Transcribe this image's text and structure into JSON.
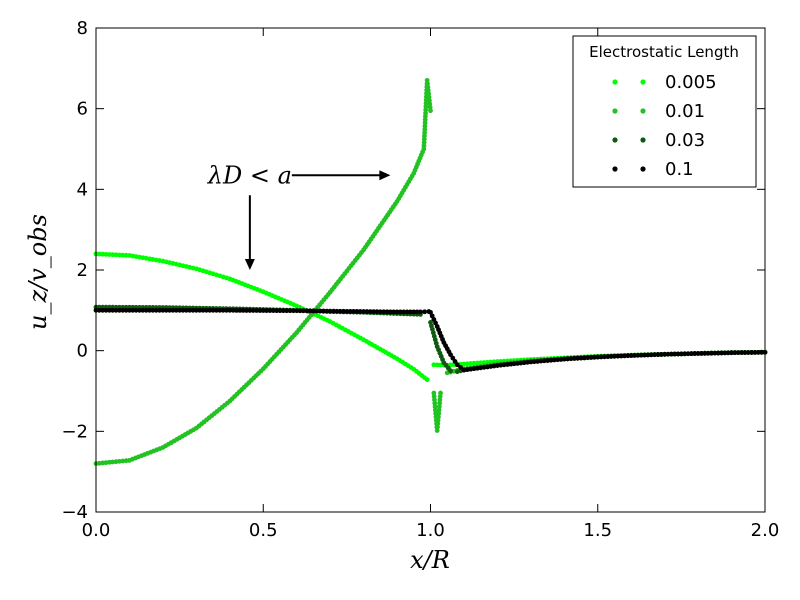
{
  "chart_data": {
    "type": "scatter",
    "title": "",
    "xlabel": "x/R",
    "ylabel": "u_z/v_obs",
    "xlim": [
      0.0,
      2.0
    ],
    "ylim": [
      -4,
      8
    ],
    "x_ticks": [
      "0.0",
      "0.5",
      "1.0",
      "1.5",
      "2.0"
    ],
    "x_tick_values": [
      0.0,
      0.5,
      1.0,
      1.5,
      2.0
    ],
    "y_ticks": [
      "−4",
      "−2",
      "0",
      "2",
      "4",
      "6",
      "8"
    ],
    "y_tick_values": [
      -4,
      -2,
      0,
      2,
      4,
      6,
      8
    ],
    "grid": false,
    "legend": {
      "title": "Electrostatic Length",
      "placement": "top-right",
      "entries": [
        "0.005",
        "0.01",
        "0.03",
        "0.1"
      ]
    },
    "annotation": {
      "text": "λD < a",
      "text_data_xy": [
        0.46,
        4.2
      ],
      "arrow_right_to": [
        0.88,
        4.2
      ],
      "arrow_down_to": [
        0.46,
        2.0
      ]
    },
    "series": [
      {
        "name": "0.005",
        "color": "#00ff00",
        "segments": [
          {
            "x": [
              0.0,
              0.1,
              0.2,
              0.3,
              0.4,
              0.5,
              0.6,
              0.7,
              0.8,
              0.9,
              0.95,
              0.99
            ],
            "y": [
              2.4,
              2.36,
              2.22,
              2.03,
              1.78,
              1.46,
              1.11,
              0.72,
              0.27,
              -0.2,
              -0.46,
              -0.72
            ]
          },
          {
            "x": [
              1.01,
              1.05,
              1.1,
              1.2,
              1.3,
              1.4,
              1.5,
              1.6,
              1.7,
              1.8,
              1.9,
              2.0
            ],
            "y": [
              -0.35,
              -0.36,
              -0.33,
              -0.27,
              -0.22,
              -0.18,
              -0.14,
              -0.11,
              -0.09,
              -0.07,
              -0.05,
              -0.04
            ]
          }
        ]
      },
      {
        "name": "0.01",
        "color": "#22c222",
        "segments": [
          {
            "x": [
              0.0,
              0.1,
              0.2,
              0.3,
              0.4,
              0.5,
              0.6,
              0.7,
              0.8,
              0.9,
              0.95,
              0.98,
              0.99,
              1.0
            ],
            "y": [
              -2.8,
              -2.72,
              -2.4,
              -1.92,
              -1.25,
              -0.45,
              0.45,
              1.45,
              2.5,
              3.7,
              4.4,
              5.0,
              6.7,
              5.95
            ]
          },
          {
            "x": [
              1.01,
              1.02,
              1.03
            ],
            "y": [
              -1.05,
              -1.98,
              -1.05
            ]
          },
          {
            "x": [
              1.05,
              1.1,
              1.2,
              1.3,
              1.4,
              1.5,
              1.6,
              1.7,
              1.8,
              1.9,
              2.0
            ],
            "y": [
              -0.55,
              -0.45,
              -0.33,
              -0.25,
              -0.2,
              -0.15,
              -0.12,
              -0.09,
              -0.07,
              -0.05,
              -0.04
            ]
          }
        ]
      },
      {
        "name": "0.03",
        "color": "#0f5a0f",
        "segments": [
          {
            "x": [
              0.0,
              0.2,
              0.4,
              0.6,
              0.7,
              0.8,
              0.9,
              0.97
            ],
            "y": [
              1.08,
              1.07,
              1.04,
              1.0,
              0.97,
              0.95,
              0.92,
              0.9
            ]
          },
          {
            "x": [
              1.0,
              1.02,
              1.04,
              1.06
            ],
            "y": [
              0.7,
              0.1,
              -0.3,
              -0.5
            ]
          },
          {
            "x": [
              1.08,
              1.1,
              1.2,
              1.3,
              1.4,
              1.5,
              1.6,
              1.7,
              1.8,
              1.9,
              2.0
            ],
            "y": [
              -0.52,
              -0.48,
              -0.36,
              -0.27,
              -0.2,
              -0.15,
              -0.12,
              -0.09,
              -0.07,
              -0.05,
              -0.04
            ]
          }
        ]
      },
      {
        "name": "0.1",
        "color": "#000000",
        "segments": [
          {
            "x": [
              0.0,
              0.2,
              0.4,
              0.6,
              0.8,
              0.9,
              0.97,
              0.995
            ],
            "y": [
              1.0,
              1.0,
              1.0,
              0.99,
              0.97,
              0.96,
              0.96,
              0.97
            ]
          },
          {
            "x": [
              1.0,
              1.02,
              1.04,
              1.06,
              1.08,
              1.1
            ],
            "y": [
              0.95,
              0.6,
              0.2,
              -0.1,
              -0.35,
              -0.48
            ]
          },
          {
            "x": [
              1.1,
              1.2,
              1.3,
              1.4,
              1.5,
              1.6,
              1.7,
              1.8,
              1.9,
              2.0
            ],
            "y": [
              -0.48,
              -0.37,
              -0.28,
              -0.21,
              -0.16,
              -0.12,
              -0.09,
              -0.07,
              -0.05,
              -0.04
            ]
          }
        ]
      }
    ]
  }
}
